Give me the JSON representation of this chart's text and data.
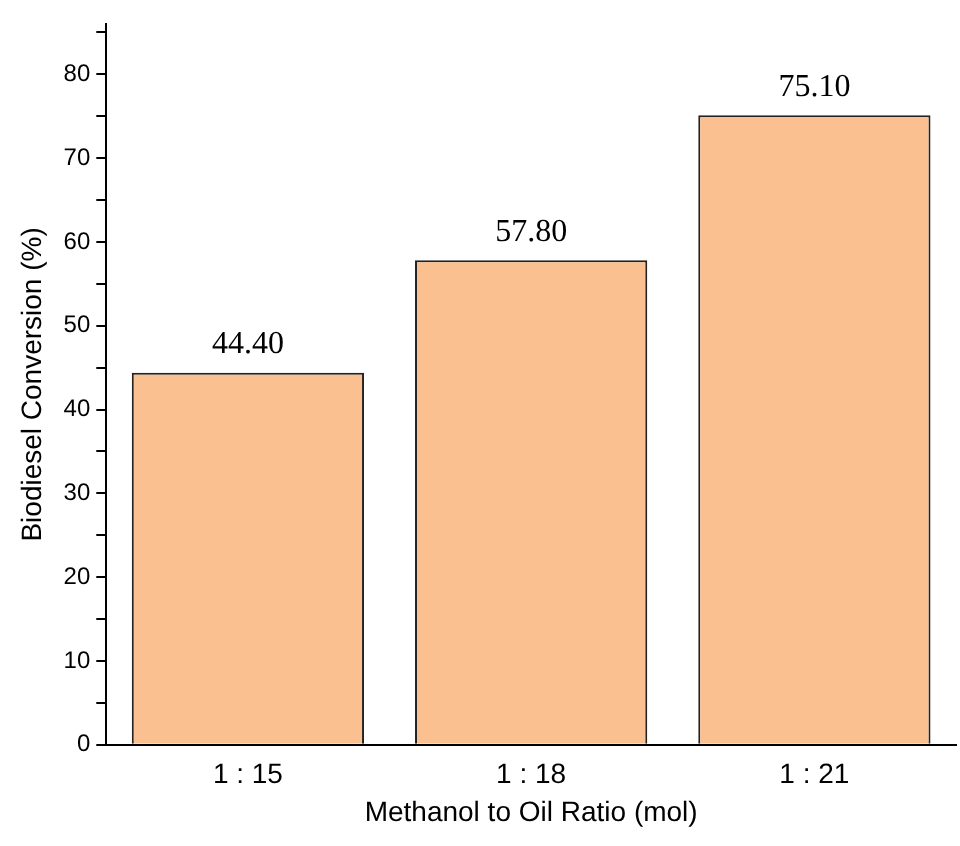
{
  "chart_data": {
    "type": "bar",
    "xlabel": "Methanol to Oil Ratio (mol)",
    "ylabel": "Biodiesel Conversion (%)",
    "categories": [
      "1 : 15",
      "1 : 18",
      "1 : 21"
    ],
    "values": [
      44.4,
      57.8,
      75.1
    ],
    "value_labels": [
      "44.40",
      "57.80",
      "75.10"
    ],
    "color": "#fac090",
    "ylim": [
      0,
      86
    ],
    "yticks": [
      0,
      {
        "value": 5,
        "label": null
      },
      10,
      {
        "value": 15,
        "label": null
      },
      20,
      {
        "value": 25,
        "label": null
      },
      30,
      {
        "value": 35,
        "label": null
      },
      40,
      {
        "value": 45,
        "label": null
      },
      50,
      {
        "value": 55,
        "label": null
      },
      60,
      {
        "value": 65,
        "label": null
      },
      70,
      {
        "value": 75,
        "label": null
      },
      80,
      {
        "value": 85,
        "label": null
      }
    ],
    "grid": false,
    "legend": false
  }
}
